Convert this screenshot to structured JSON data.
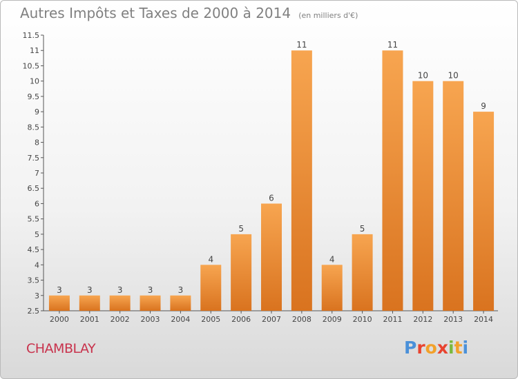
{
  "header": {
    "title": "Autres Impôts et Taxes de 2000 à 2014",
    "subtitle": "(en milliers d'€)"
  },
  "footer": {
    "commune": "CHAMBLAY",
    "logo_text": "Proxiti",
    "logo_colors": [
      "#4a90d9",
      "#e8432f",
      "#f2a12a",
      "#e8432f",
      "#7ab93e",
      "#f2a12a",
      "#4a90d9"
    ]
  },
  "chart_data": {
    "type": "bar",
    "categories": [
      "2000",
      "2001",
      "2002",
      "2003",
      "2004",
      "2005",
      "2006",
      "2007",
      "2008",
      "2009",
      "2010",
      "2011",
      "2012",
      "2013",
      "2014"
    ],
    "values": [
      3,
      3,
      3,
      3,
      3,
      4,
      5,
      6,
      11,
      4,
      5,
      11,
      10,
      10,
      9
    ],
    "data_labels": [
      "3",
      "3",
      "3",
      "3",
      "3",
      "4",
      "5",
      "6",
      "11",
      "4",
      "5",
      "11",
      "10",
      "10",
      "9"
    ],
    "ylim": [
      2.5,
      11.5
    ],
    "y_ticks": [
      "2.5",
      "3",
      "3.5",
      "4",
      "4.5",
      "5",
      "5.5",
      "6",
      "6.5",
      "7",
      "7.5",
      "8",
      "8.5",
      "9",
      "9.5",
      "10",
      "10.5",
      "11",
      "11.5"
    ],
    "y_tick_values": [
      2.5,
      3,
      3.5,
      4,
      4.5,
      5,
      5.5,
      6,
      6.5,
      7,
      7.5,
      8,
      8.5,
      9,
      9.5,
      10,
      10.5,
      11,
      11.5
    ],
    "grid": false,
    "colors": {
      "bar_top": "#f7a550",
      "bar_bottom": "#d9731f",
      "axis": "#555555",
      "label": "#444444"
    }
  }
}
